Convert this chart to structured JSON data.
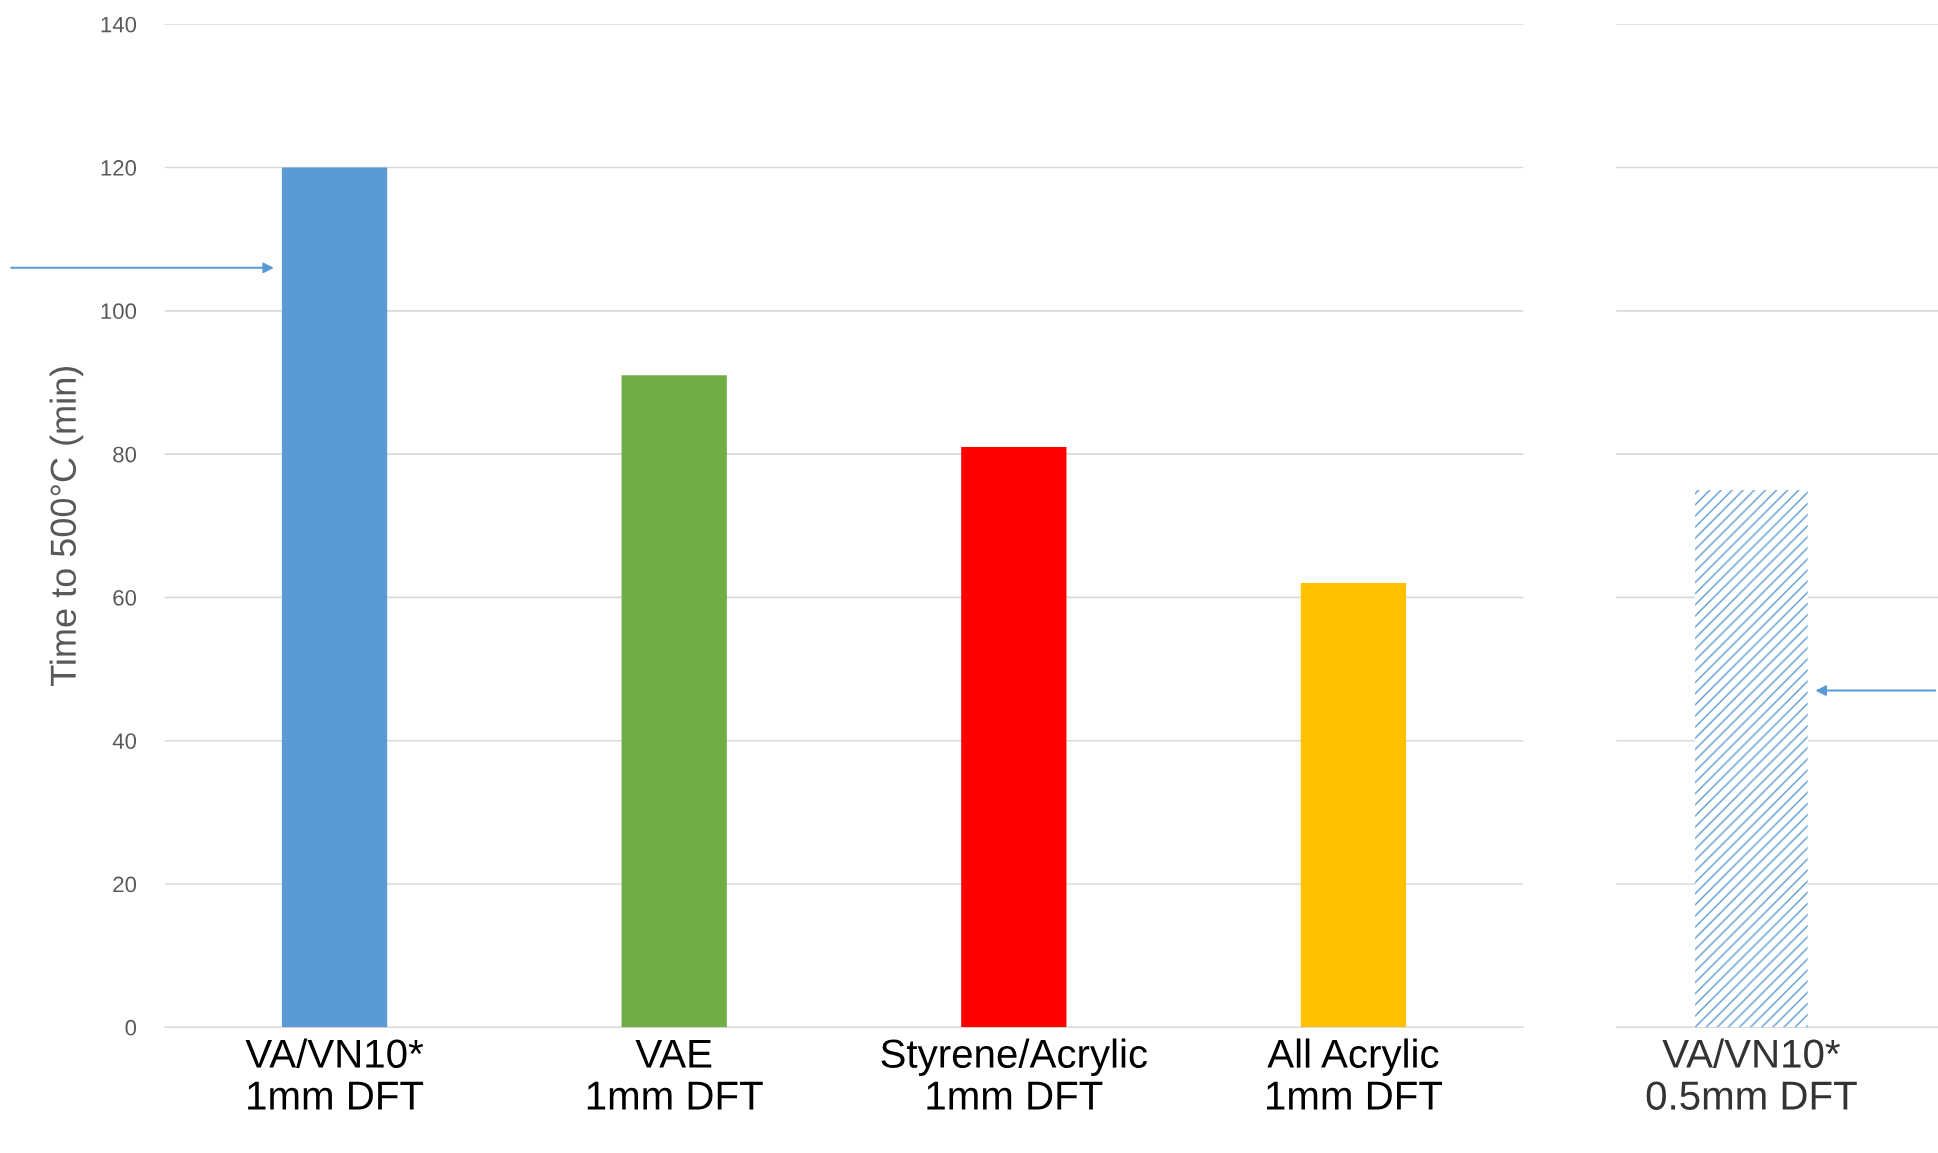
{
  "chart_data": [
    {
      "type": "bar",
      "ylabel": "Time to 500°C (min)",
      "categories": [
        "VA/VN10*\n1mm DFT",
        "VAE\n1mm DFT",
        "Styrene/Acrylic\n1mm DFT",
        "All Acrylic\n1mm DFT"
      ],
      "values": [
        120,
        91,
        81,
        62
      ],
      "colors": [
        "#5b9bd5",
        "#70ad47",
        "#ff0000",
        "#ffc000"
      ],
      "ylim": [
        0,
        140
      ],
      "yticks": [
        0,
        20,
        40,
        60,
        80,
        100,
        120,
        140
      ],
      "grid": "y"
    },
    {
      "type": "bar",
      "categories": [
        "VA/VN10*\n0.5mm DFT"
      ],
      "values": [
        75
      ],
      "colors": [
        "#5b9bd5"
      ],
      "ylim": [
        0,
        140
      ],
      "yticks": [
        0,
        20,
        40,
        60,
        80,
        100,
        120,
        140
      ],
      "grid": "y",
      "tick_labels": "x"
    }
  ]
}
